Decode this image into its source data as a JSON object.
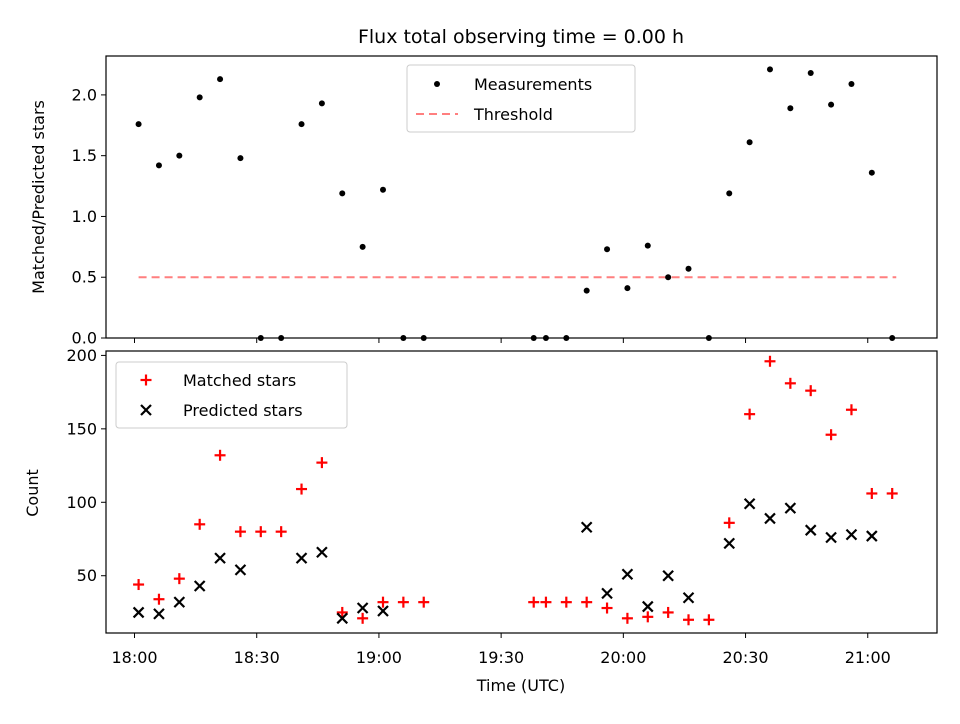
{
  "chart_data": [
    {
      "type": "scatter",
      "title": "Flux total observing time = 0.00 h",
      "ylabel": "Matched/Predicted stars",
      "ylim": [
        0,
        2.32
      ],
      "yticks": [
        "0.0",
        "0.5",
        "1.0",
        "1.5",
        "2.0"
      ],
      "grid": false,
      "legend": "top-center",
      "series": [
        {
          "name": "Measurements",
          "marker": "dot",
          "color": "#000000",
          "points": [
            {
              "x": "18:01",
              "y": 1.76
            },
            {
              "x": "18:06",
              "y": 1.42
            },
            {
              "x": "18:11",
              "y": 1.5
            },
            {
              "x": "18:16",
              "y": 1.98
            },
            {
              "x": "18:21",
              "y": 2.13
            },
            {
              "x": "18:26",
              "y": 1.48
            },
            {
              "x": "18:31",
              "y": 0.0
            },
            {
              "x": "18:36",
              "y": 0.0
            },
            {
              "x": "18:41",
              "y": 1.76
            },
            {
              "x": "18:46",
              "y": 1.93
            },
            {
              "x": "18:51",
              "y": 1.19
            },
            {
              "x": "18:56",
              "y": 0.75
            },
            {
              "x": "19:01",
              "y": 1.22
            },
            {
              "x": "19:06",
              "y": 0.0
            },
            {
              "x": "19:11",
              "y": 0.0
            },
            {
              "x": "19:38",
              "y": 0.0
            },
            {
              "x": "19:41",
              "y": 0.0
            },
            {
              "x": "19:46",
              "y": 0.0
            },
            {
              "x": "19:51",
              "y": 0.39
            },
            {
              "x": "19:56",
              "y": 0.73
            },
            {
              "x": "20:01",
              "y": 0.41
            },
            {
              "x": "20:06",
              "y": 0.76
            },
            {
              "x": "20:11",
              "y": 0.5
            },
            {
              "x": "20:16",
              "y": 0.57
            },
            {
              "x": "20:21",
              "y": 0.0
            },
            {
              "x": "20:26",
              "y": 1.19
            },
            {
              "x": "20:31",
              "y": 1.61
            },
            {
              "x": "20:36",
              "y": 2.21
            },
            {
              "x": "20:41",
              "y": 1.89
            },
            {
              "x": "20:46",
              "y": 2.18
            },
            {
              "x": "20:51",
              "y": 1.92
            },
            {
              "x": "20:56",
              "y": 2.09
            },
            {
              "x": "21:01",
              "y": 1.36
            },
            {
              "x": "21:06",
              "y": 0.0
            }
          ]
        },
        {
          "name": "Threshold",
          "marker": "dashed-line",
          "color": "#ff7f7f",
          "points": [
            {
              "x": "18:01",
              "y": 0.5
            },
            {
              "x": "21:07",
              "y": 0.5
            }
          ]
        }
      ]
    },
    {
      "type": "scatter",
      "xlabel": "Time (UTC)",
      "ylabel": "Count",
      "ylim": [
        11,
        203
      ],
      "yticks": [
        "50",
        "100",
        "150",
        "200"
      ],
      "xlim": [
        "17:53",
        "21:17"
      ],
      "xticks": [
        "18:00",
        "18:30",
        "19:00",
        "19:30",
        "20:00",
        "20:30",
        "21:00"
      ],
      "grid": false,
      "legend": "top-left",
      "series": [
        {
          "name": "Matched stars",
          "marker": "plus",
          "color": "#ff0000",
          "points": [
            {
              "x": "18:01",
              "y": 44
            },
            {
              "x": "18:06",
              "y": 34
            },
            {
              "x": "18:11",
              "y": 48
            },
            {
              "x": "18:16",
              "y": 85
            },
            {
              "x": "18:21",
              "y": 132
            },
            {
              "x": "18:26",
              "y": 80
            },
            {
              "x": "18:31",
              "y": 80
            },
            {
              "x": "18:36",
              "y": 80
            },
            {
              "x": "18:41",
              "y": 109
            },
            {
              "x": "18:46",
              "y": 127
            },
            {
              "x": "18:51",
              "y": 25
            },
            {
              "x": "18:56",
              "y": 21
            },
            {
              "x": "19:01",
              "y": 32
            },
            {
              "x": "19:06",
              "y": 32
            },
            {
              "x": "19:11",
              "y": 32
            },
            {
              "x": "19:38",
              "y": 32
            },
            {
              "x": "19:41",
              "y": 32
            },
            {
              "x": "19:46",
              "y": 32
            },
            {
              "x": "19:51",
              "y": 32
            },
            {
              "x": "19:56",
              "y": 28
            },
            {
              "x": "20:01",
              "y": 21
            },
            {
              "x": "20:06",
              "y": 22
            },
            {
              "x": "20:11",
              "y": 25
            },
            {
              "x": "20:16",
              "y": 20
            },
            {
              "x": "20:21",
              "y": 20
            },
            {
              "x": "20:26",
              "y": 86
            },
            {
              "x": "20:31",
              "y": 160
            },
            {
              "x": "20:36",
              "y": 196
            },
            {
              "x": "20:41",
              "y": 181
            },
            {
              "x": "20:46",
              "y": 176
            },
            {
              "x": "20:51",
              "y": 146
            },
            {
              "x": "20:56",
              "y": 163
            },
            {
              "x": "21:01",
              "y": 106
            },
            {
              "x": "21:06",
              "y": 106
            }
          ]
        },
        {
          "name": "Predicted stars",
          "marker": "x",
          "color": "#000000",
          "points": [
            {
              "x": "18:01",
              "y": 25
            },
            {
              "x": "18:06",
              "y": 24
            },
            {
              "x": "18:11",
              "y": 32
            },
            {
              "x": "18:16",
              "y": 43
            },
            {
              "x": "18:21",
              "y": 62
            },
            {
              "x": "18:26",
              "y": 54
            },
            {
              "x": "18:41",
              "y": 62
            },
            {
              "x": "18:46",
              "y": 66
            },
            {
              "x": "18:51",
              "y": 21
            },
            {
              "x": "18:56",
              "y": 28
            },
            {
              "x": "19:01",
              "y": 26
            },
            {
              "x": "19:51",
              "y": 83
            },
            {
              "x": "19:56",
              "y": 38
            },
            {
              "x": "20:01",
              "y": 51
            },
            {
              "x": "20:06",
              "y": 29
            },
            {
              "x": "20:11",
              "y": 50
            },
            {
              "x": "20:16",
              "y": 35
            },
            {
              "x": "20:26",
              "y": 72
            },
            {
              "x": "20:31",
              "y": 99
            },
            {
              "x": "20:36",
              "y": 89
            },
            {
              "x": "20:41",
              "y": 96
            },
            {
              "x": "20:46",
              "y": 81
            },
            {
              "x": "20:51",
              "y": 76
            },
            {
              "x": "20:56",
              "y": 78
            },
            {
              "x": "21:01",
              "y": 77
            }
          ]
        }
      ]
    }
  ]
}
